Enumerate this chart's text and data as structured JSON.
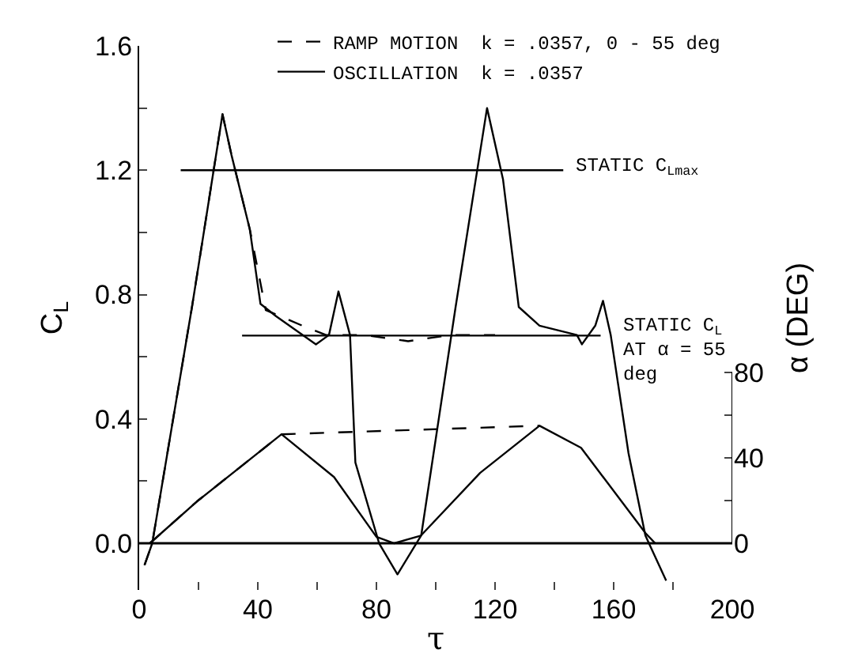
{
  "chart_data": {
    "type": "line",
    "xlabel": "τ",
    "ylabel": "C$_{L}$",
    "y2label": "α (DEG)",
    "xlim": [
      0,
      200
    ],
    "xticks": [
      0,
      {
        "value": 20,
        "label": null
      },
      40,
      {
        "value": 60,
        "label": null
      },
      80,
      {
        "value": 100,
        "label": null
      },
      120,
      {
        "value": 140,
        "label": null
      },
      160,
      {
        "value": 180,
        "label": null
      },
      200
    ],
    "ylim": [
      -0.15,
      1.6
    ],
    "yticks": [
      {
        "value": 0,
        "label": "0.0"
      },
      {
        "value": 0.2,
        "label": null
      },
      {
        "value": 0.4,
        "label": "0.4"
      },
      {
        "value": 0.6,
        "label": null
      },
      {
        "value": 0.8,
        "label": "0.8"
      },
      {
        "value": 1.0,
        "label": null
      },
      {
        "value": 1.2,
        "label": "1.2"
      },
      {
        "value": 1.4,
        "label": null
      },
      {
        "value": 1.6,
        "label": "1.6"
      }
    ],
    "y2lim": [
      0,
      80
    ],
    "y2ticks": [
      0,
      {
        "value": 20,
        "label": null
      },
      40,
      {
        "value": 60,
        "label": null
      },
      80
    ],
    "legend": "top",
    "marker": "none",
    "series": [
      {
        "name": "RAMP MOTION  k = .0357, 0 - 55 deg",
        "color": "#000000",
        "line_style": "dashed",
        "x": [
          1.8,
          4.4,
          17.8,
          28.1,
          31.1,
          37.3,
          42.7,
          55,
          63,
          76,
          90.7,
          105,
          120
        ],
        "values": [
          -0.07,
          0,
          0.76,
          1.38,
          1.25,
          1.01,
          0.75,
          0.7,
          0.67,
          0.67,
          0.65,
          0.67,
          0.67
        ]
      },
      {
        "name": "OSCILLATION  k = .0357",
        "color": "#000000",
        "line_style": "solid",
        "x": [
          1.8,
          4.4,
          17.8,
          28.1,
          31.1,
          37.3,
          40.9,
          46.2,
          59.6,
          64,
          67.2,
          71.1,
          72.9,
          80.9,
          87.1,
          95.1,
          106.7,
          117.3,
          122.7,
          128,
          135,
          147.6,
          149.3,
          153.8,
          156.4,
          159,
          165,
          170.7,
          177.7
        ],
        "values": [
          -0.07,
          0,
          0.76,
          1.38,
          1.25,
          1.01,
          0.77,
          0.73,
          0.64,
          0.67,
          0.81,
          0.67,
          0.26,
          0,
          -0.1,
          0.025,
          0.76,
          1.4,
          1.17,
          0.76,
          0.7,
          0.67,
          0.64,
          0.7,
          0.78,
          0.67,
          0.29,
          0.025,
          -0.12
        ]
      },
      {
        "color": "#000000",
        "line_style": "dashed",
        "axis": "y2",
        "x": [
          3.6,
          19.5,
          48,
          135
        ],
        "values": [
          0,
          19.6,
          51,
          55
        ]
      },
      {
        "color": "#000000",
        "line_style": "solid",
        "axis": "y2",
        "x": [
          3.6,
          19.5,
          48,
          65.7,
          80,
          86,
          95,
          115,
          135,
          149,
          170.7,
          174
        ],
        "values": [
          0,
          19.6,
          51,
          31,
          3,
          0,
          3.6,
          33,
          55,
          44.7,
          4.8,
          0
        ]
      },
      {
        "color": "#000000",
        "line_style": "solid",
        "x": [
          14,
          143
        ],
        "values": [
          1.2,
          1.2
        ]
      },
      {
        "color": "#000000",
        "line_style": "solid",
        "x": [
          34.7,
          155.6
        ],
        "values": [
          0.668,
          0.668
        ]
      }
    ],
    "annotations": [
      "STATIC C$_{Lmax}$",
      "STATIC C$_{L}$\nAT α = 55\ndeg"
    ]
  }
}
